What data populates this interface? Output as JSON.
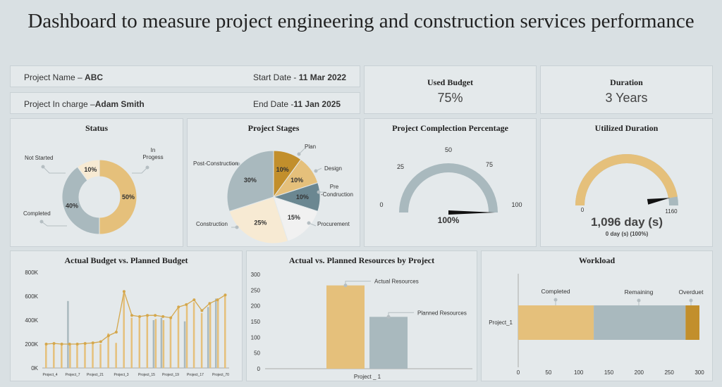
{
  "title": "Dashboard to measure project engineering and construction services performance",
  "info": {
    "project_name_label": "Project Name – ",
    "project_name": "ABC",
    "start_label": "Start Date - ",
    "start_date": "11 Mar 2022",
    "incharge_label": "Project In charge –",
    "incharge": "Adam Smith",
    "end_label": "End Date -",
    "end_date": "11 Jan 2025"
  },
  "kpis": {
    "budget_label": "Used Budget",
    "budget_value": "75%",
    "duration_label": "Duration",
    "duration_value": "3 Years"
  },
  "colors": {
    "gold": "#e5c07b",
    "grey": "#a9b9be",
    "cream": "#f7ead3",
    "dark_gold": "#c28f2c",
    "slate": "#6b8791",
    "light": "#f1f1f1"
  },
  "chart_data": [
    {
      "id": "status",
      "type": "pie",
      "title": "Status",
      "slices": [
        {
          "label": "In Progess",
          "value": 50,
          "display": "50%"
        },
        {
          "label": "Completed",
          "value": 40,
          "display": "40%"
        },
        {
          "label": "Not Started",
          "value": 10,
          "display": "10%"
        }
      ]
    },
    {
      "id": "stages",
      "type": "pie",
      "title": "Project Stages",
      "slices": [
        {
          "label": "Plan",
          "value": 10,
          "display": "10%"
        },
        {
          "label": "Design",
          "value": 10,
          "display": "10%"
        },
        {
          "label": "Pre -Condruction",
          "value": 10,
          "display": "10%"
        },
        {
          "label": "Procurement",
          "value": 15,
          "display": "15%"
        },
        {
          "label": "Construction",
          "value": 25,
          "display": "25%"
        },
        {
          "label": "Post-Construction",
          "value": 30,
          "display": "30%"
        }
      ]
    },
    {
      "id": "completion",
      "type": "gauge",
      "title": "Project Complection Percentage",
      "ticks": [
        "0",
        "25",
        "50",
        "75",
        "100"
      ],
      "range": [
        0,
        100
      ],
      "value": 100,
      "value_label": "100%"
    },
    {
      "id": "utilized",
      "type": "gauge",
      "title": "Utilized Duration",
      "range": [
        0,
        1160
      ],
      "min_label": "0",
      "max_label": "1160",
      "value": 1096,
      "value_label": "1,096 day (s)",
      "sub_label": "0 day (s) (100%)"
    },
    {
      "id": "budget",
      "type": "bar",
      "title": "Actual Budget vs. Planned Budget",
      "y_ticks": [
        "0K",
        "200K",
        "400K",
        "600K",
        "800K"
      ],
      "ylim": [
        0,
        800
      ],
      "x_labels": [
        "Project_4",
        "Project_7",
        "Project_21",
        "Project_3",
        "Project_15",
        "Project_19",
        "Project_17",
        "Project_70"
      ],
      "series": [
        {
          "name": "Actual",
          "values": [
            200,
            200,
            200,
            200,
            200,
            200,
            200,
            200,
            290,
            210,
            620,
            420,
            430,
            430,
            410,
            400,
            430,
            500,
            520,
            550,
            460,
            530,
            580,
            600
          ]
        },
        {
          "name": "Planned",
          "values": [
            0,
            0,
            0,
            560,
            0,
            0,
            0,
            0,
            0,
            0,
            0,
            0,
            0,
            0,
            400,
            420,
            0,
            0,
            390,
            0,
            0,
            510,
            580,
            0
          ]
        }
      ],
      "line": [
        200,
        205,
        200,
        200,
        200,
        205,
        210,
        220,
        270,
        300,
        640,
        440,
        430,
        440,
        440,
        430,
        420,
        510,
        530,
        570,
        480,
        540,
        570,
        610
      ]
    },
    {
      "id": "resources",
      "type": "bar",
      "title": "Actual vs. Planned Resources by Project",
      "y_ticks": [
        "0",
        "50",
        "100",
        "150",
        "200",
        "250",
        "300"
      ],
      "ylim": [
        0,
        300
      ],
      "categories": [
        "Project _ 1"
      ],
      "series": [
        {
          "name": "Actual Resources",
          "values": [
            265
          ]
        },
        {
          "name": "Planned Resources",
          "values": [
            165
          ]
        }
      ]
    },
    {
      "id": "workload",
      "type": "bar",
      "title": "Workload",
      "x_ticks": [
        "0",
        "50",
        "100",
        "150",
        "200",
        "250",
        "300"
      ],
      "xlim": [
        0,
        300
      ],
      "categories": [
        "Project_1"
      ],
      "series": [
        {
          "name": "Completed",
          "values": [
            125
          ]
        },
        {
          "name": "Remaining",
          "values": [
            152
          ]
        },
        {
          "name": "Overduet",
          "values": [
            23
          ]
        }
      ]
    }
  ]
}
